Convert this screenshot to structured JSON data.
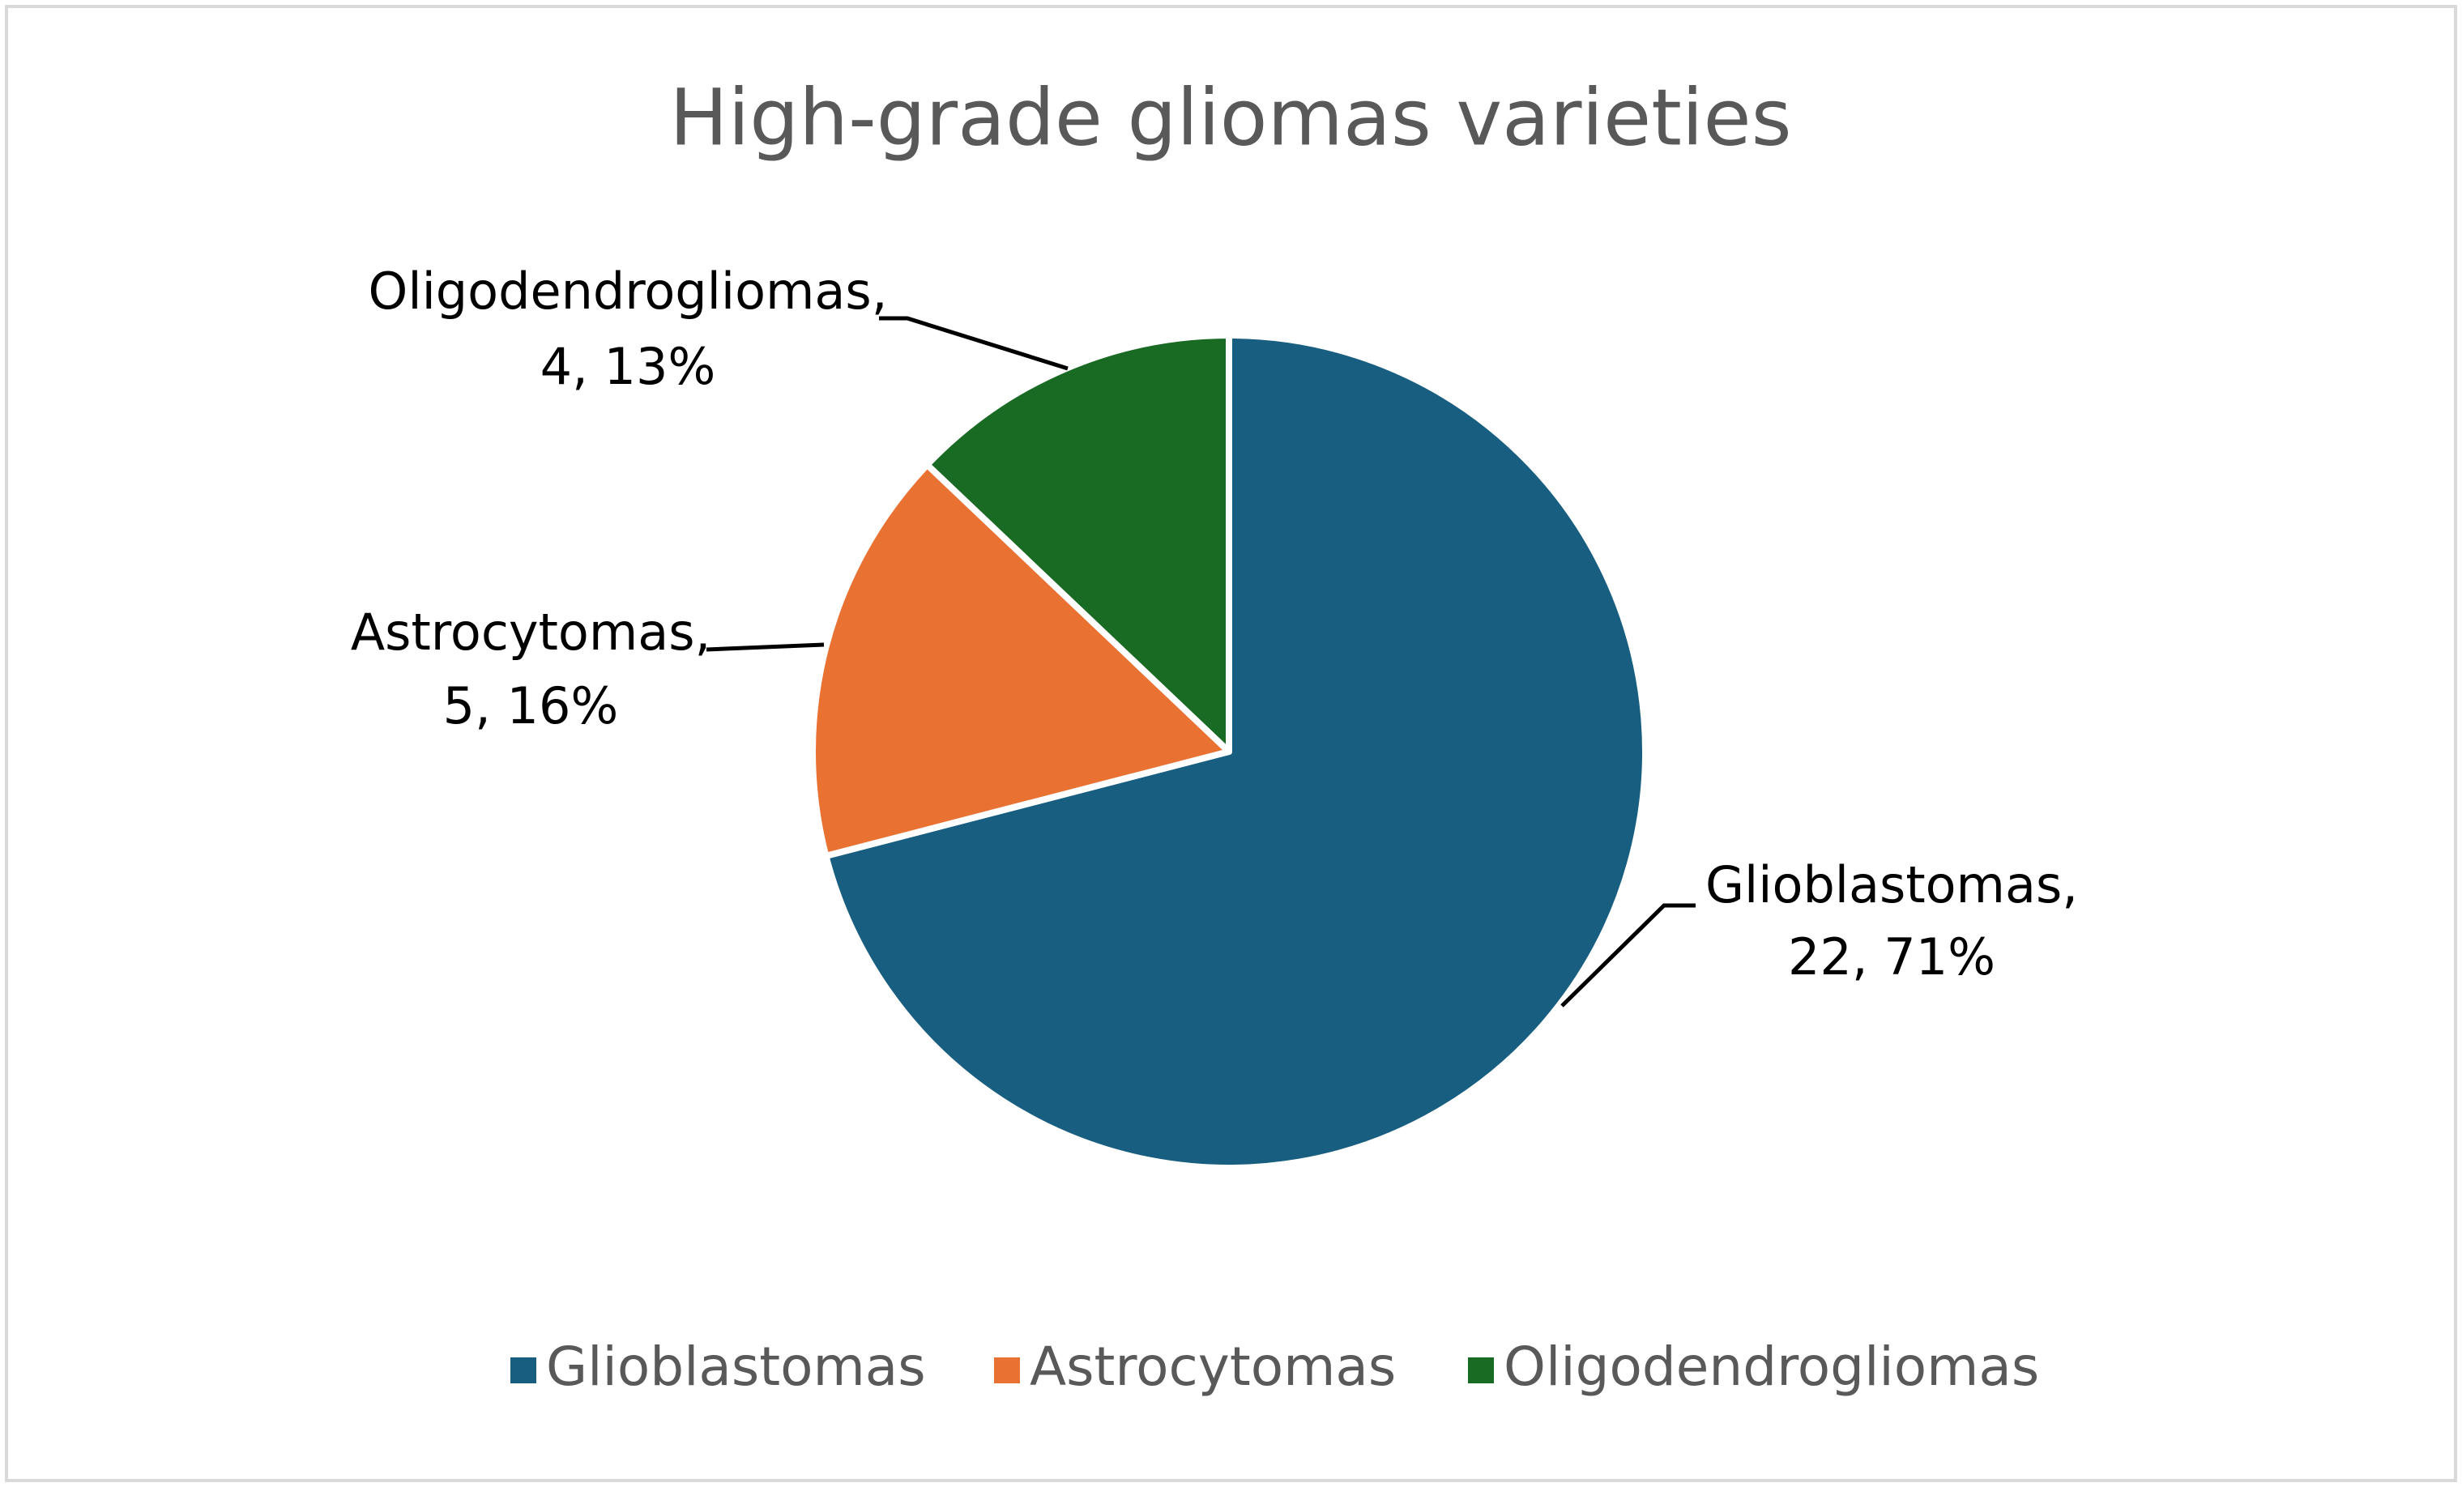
{
  "chart_data": {
    "type": "pie",
    "title": "High-grade gliomas varieties",
    "categories": [
      "Glioblastomas",
      "Astrocytomas",
      "Oligodendrogliomas"
    ],
    "values": [
      22,
      5,
      4
    ],
    "value_labels": [
      [
        "Glioblastomas,",
        "22, 71%"
      ],
      [
        "Astrocytomas,",
        "5, 16%"
      ],
      [
        "Oligodendrogliomas,",
        "4, 13%"
      ]
    ],
    "colors": [
      "#175e80",
      "#e97132",
      "#196b24"
    ],
    "legend": "bottom"
  }
}
